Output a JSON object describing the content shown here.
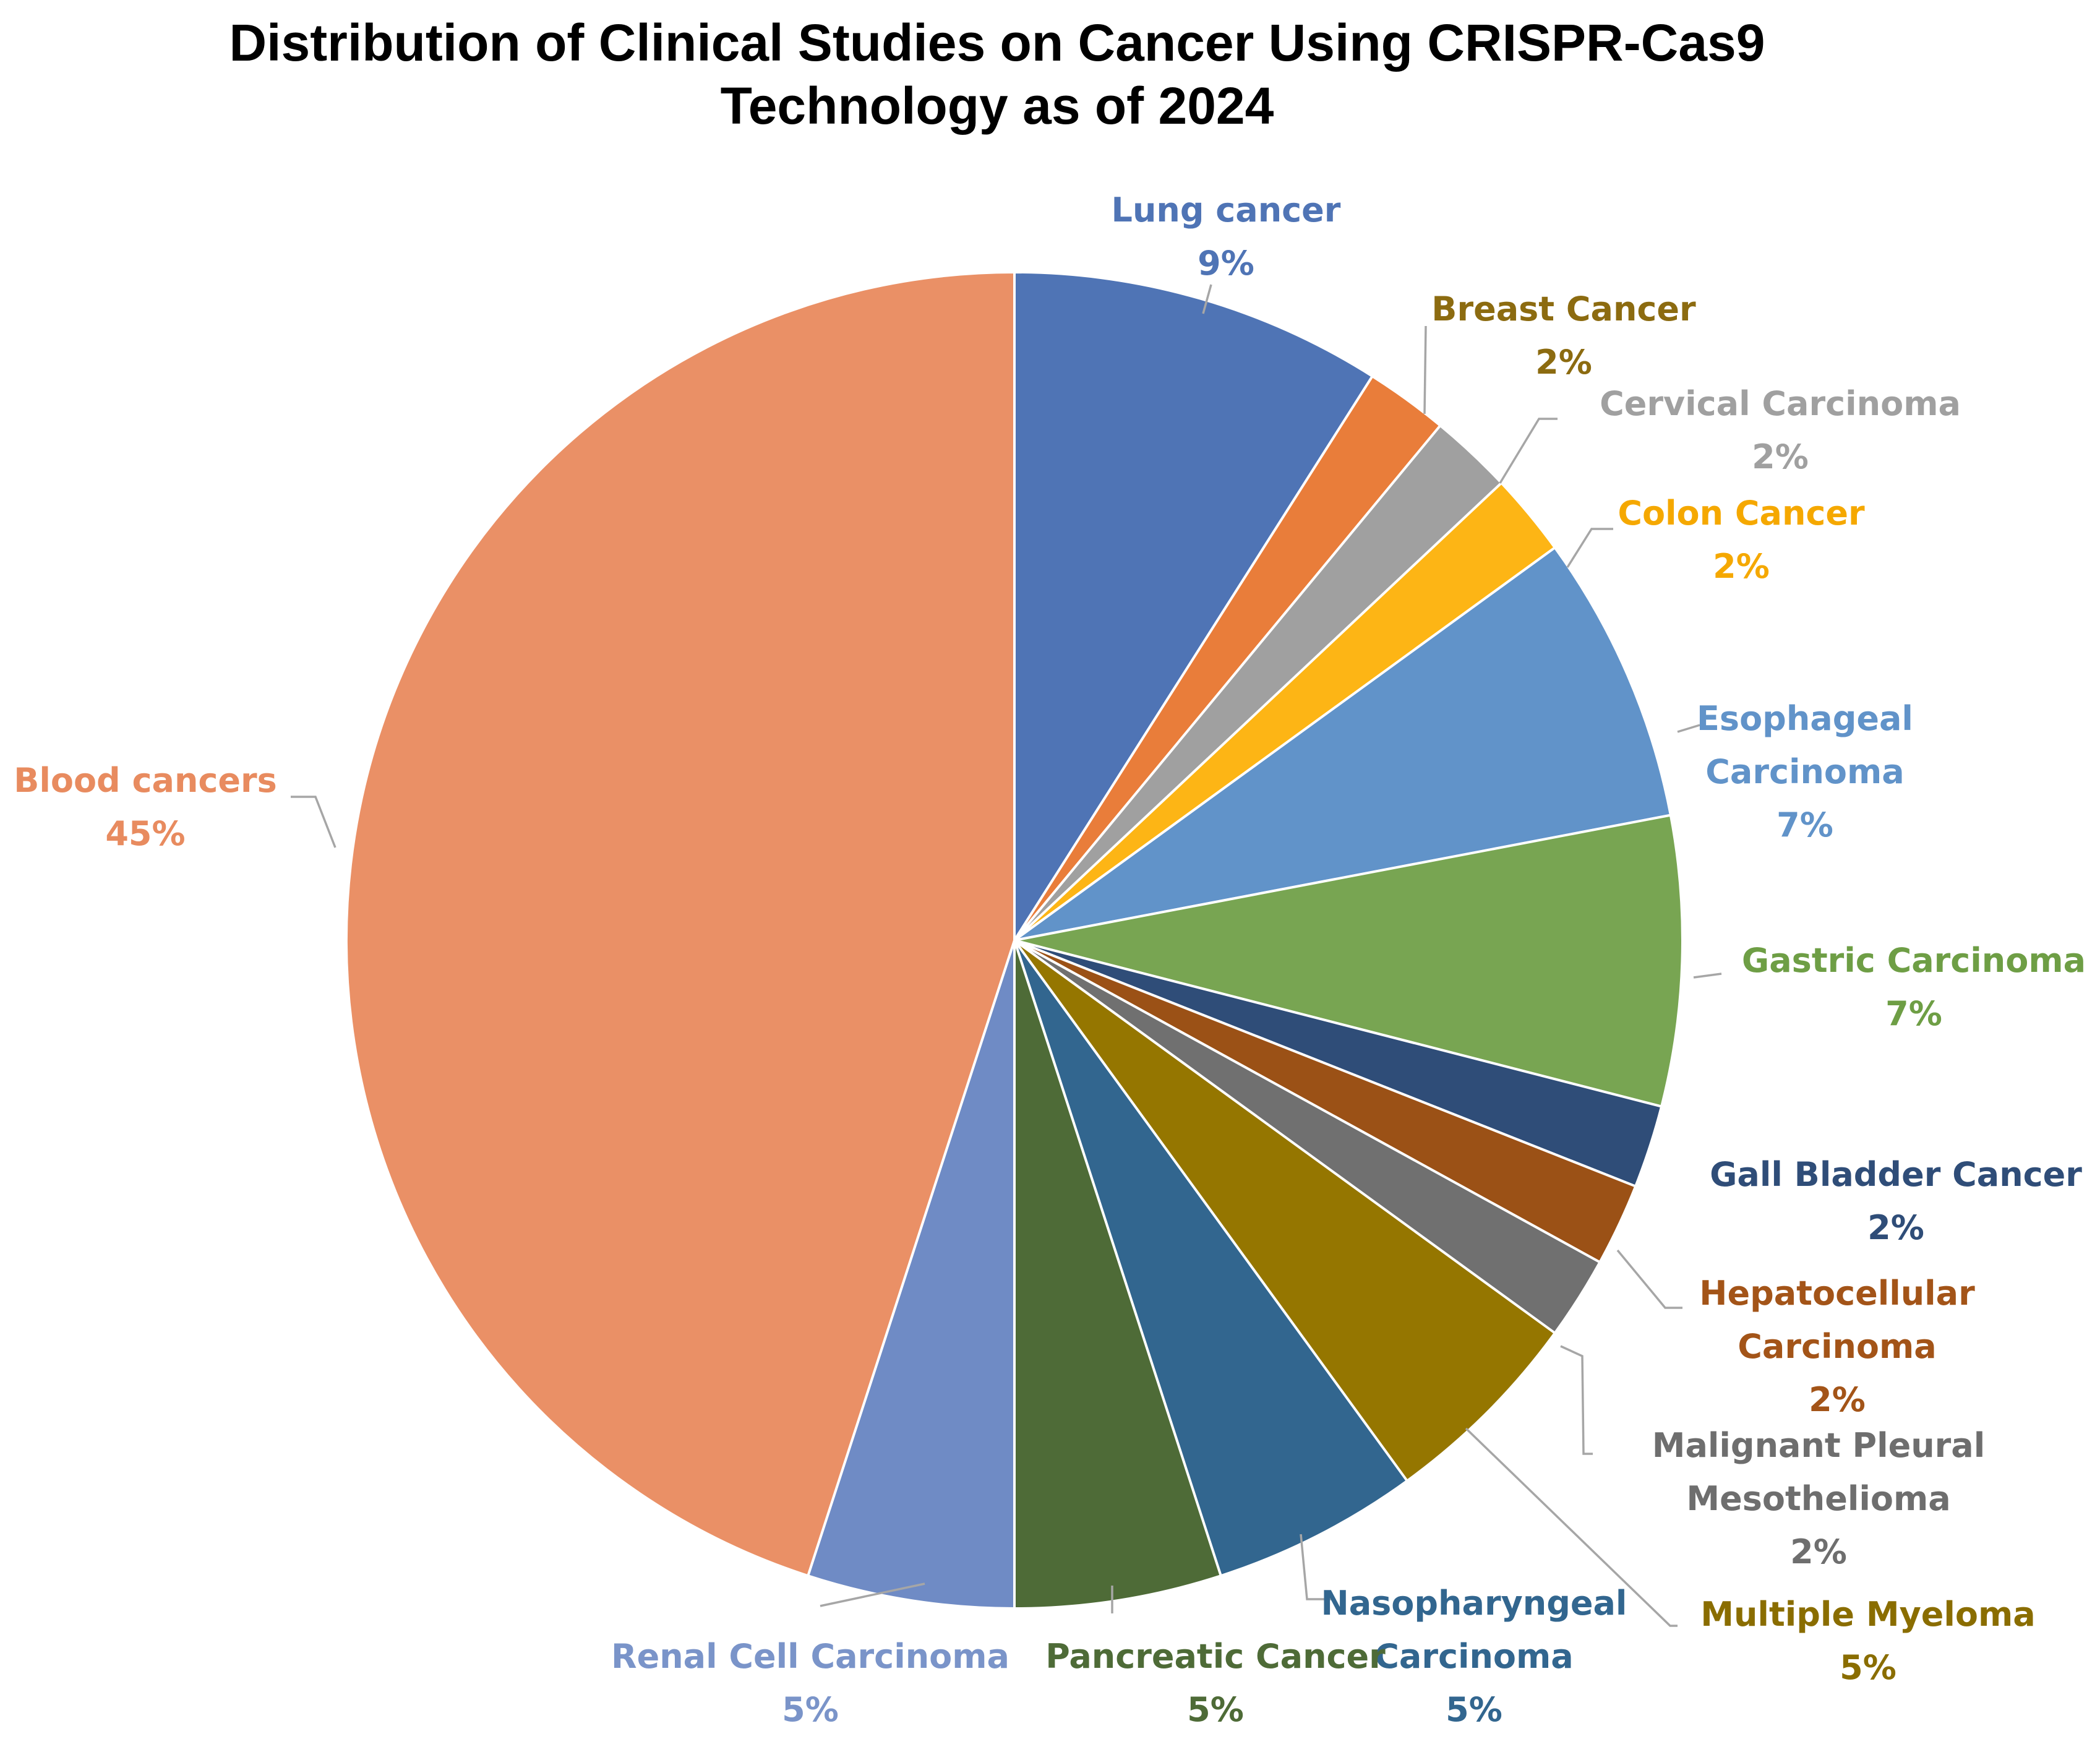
{
  "chart_data": {
    "type": "pie",
    "title_lines": [
      "Distribution of Clinical Studies on Cancer Using CRISPR-Cas9",
      "Technology as of 2024"
    ],
    "start_angle_deg": 0,
    "direction": "clockwise",
    "slices": [
      {
        "name": "Lung cancer",
        "label_lines": [
          "Lung cancer"
        ],
        "value": 9,
        "pct_label": "9%",
        "color": "#4F74B5",
        "text_color": "#4F74B5"
      },
      {
        "name": "Breast Cancer",
        "label_lines": [
          "Breast Cancer"
        ],
        "value": 2,
        "pct_label": "2%",
        "color": "#E97D3A",
        "text_color": "#8C6B10"
      },
      {
        "name": "Cervical Carcinoma",
        "label_lines": [
          "Cervical Carcinoma"
        ],
        "value": 2,
        "pct_label": "2%",
        "color": "#A0A0A0",
        "text_color": "#A0A0A0"
      },
      {
        "name": "Colon Cancer",
        "label_lines": [
          "Colon Cancer"
        ],
        "value": 2,
        "pct_label": "2%",
        "color": "#FDB515",
        "text_color": "#F5A800"
      },
      {
        "name": "Esophageal Carcinoma",
        "label_lines": [
          "Esophageal",
          "Carcinoma"
        ],
        "value": 7,
        "pct_label": "7%",
        "color": "#6193C9",
        "text_color": "#6193C9"
      },
      {
        "name": "Gastric Carcinoma",
        "label_lines": [
          "Gastric Carcinoma"
        ],
        "value": 7,
        "pct_label": "7%",
        "color": "#78A552",
        "text_color": "#6E9E45"
      },
      {
        "name": "Gall Bladder Cancer",
        "label_lines": [
          "Gall Bladder Cancer"
        ],
        "value": 2,
        "pct_label": "2%",
        "color": "#2F4D78",
        "text_color": "#2F4D78"
      },
      {
        "name": "Hepatocellular Carcinoma",
        "label_lines": [
          "Hepatocellular",
          "Carcinoma"
        ],
        "value": 2,
        "pct_label": "2%",
        "color": "#9B5116",
        "text_color": "#A35418"
      },
      {
        "name": "Malignant Pleural Mesothelioma",
        "label_lines": [
          "Malignant Pleural",
          "Mesothelioma"
        ],
        "value": 2,
        "pct_label": "2%",
        "color": "#707070",
        "text_color": "#6E6E6E"
      },
      {
        "name": "Multiple Myeloma",
        "label_lines": [
          "Multiple Myeloma"
        ],
        "value": 5,
        "pct_label": "5%",
        "color": "#957600",
        "text_color": "#8A6D00"
      },
      {
        "name": "Nasopharyngeal Carcinoma",
        "label_lines": [
          "Nasopharyngeal",
          "Carcinoma"
        ],
        "value": 5,
        "pct_label": "5%",
        "color": "#32668F",
        "text_color": "#32668F"
      },
      {
        "name": "Pancreatic Cancer",
        "label_lines": [
          "Pancreatic Cancer"
        ],
        "value": 5,
        "pct_label": "5%",
        "color": "#4E6B37",
        "text_color": "#4E6B37"
      },
      {
        "name": "Renal Cell Carcinoma",
        "label_lines": [
          "Renal Cell Carcinoma"
        ],
        "value": 5,
        "pct_label": "5%",
        "color": "#6F8BC5",
        "text_color": "#7A94C9"
      },
      {
        "name": "Blood cancers",
        "label_lines": [
          "Blood cancers"
        ],
        "value": 45,
        "pct_label": "45%",
        "color": "#EA9066",
        "text_color": "#E88B5F"
      }
    ]
  }
}
